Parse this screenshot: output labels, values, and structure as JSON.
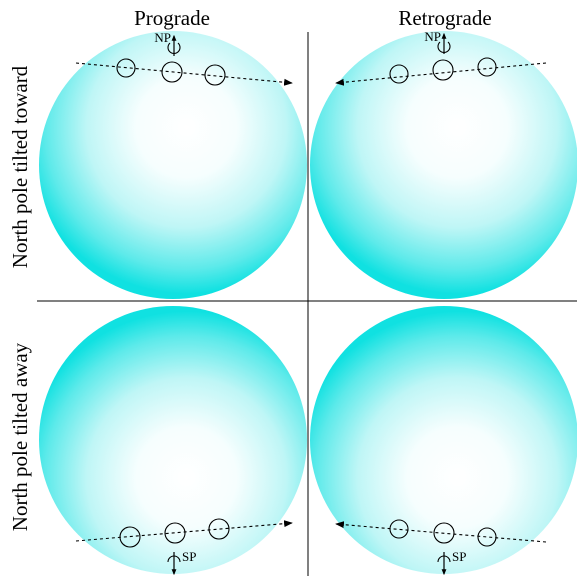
{
  "columns": [
    {
      "label": "Prograde"
    },
    {
      "label": "Retrograde"
    }
  ],
  "rows": [
    {
      "label": "North pole tilted toward"
    },
    {
      "label": "North pole tilted away"
    }
  ],
  "pole_labels": {
    "north": "NP",
    "south": "SP"
  },
  "colors": {
    "star_edge": "#00e5e5",
    "star_center": "#ffffff"
  }
}
